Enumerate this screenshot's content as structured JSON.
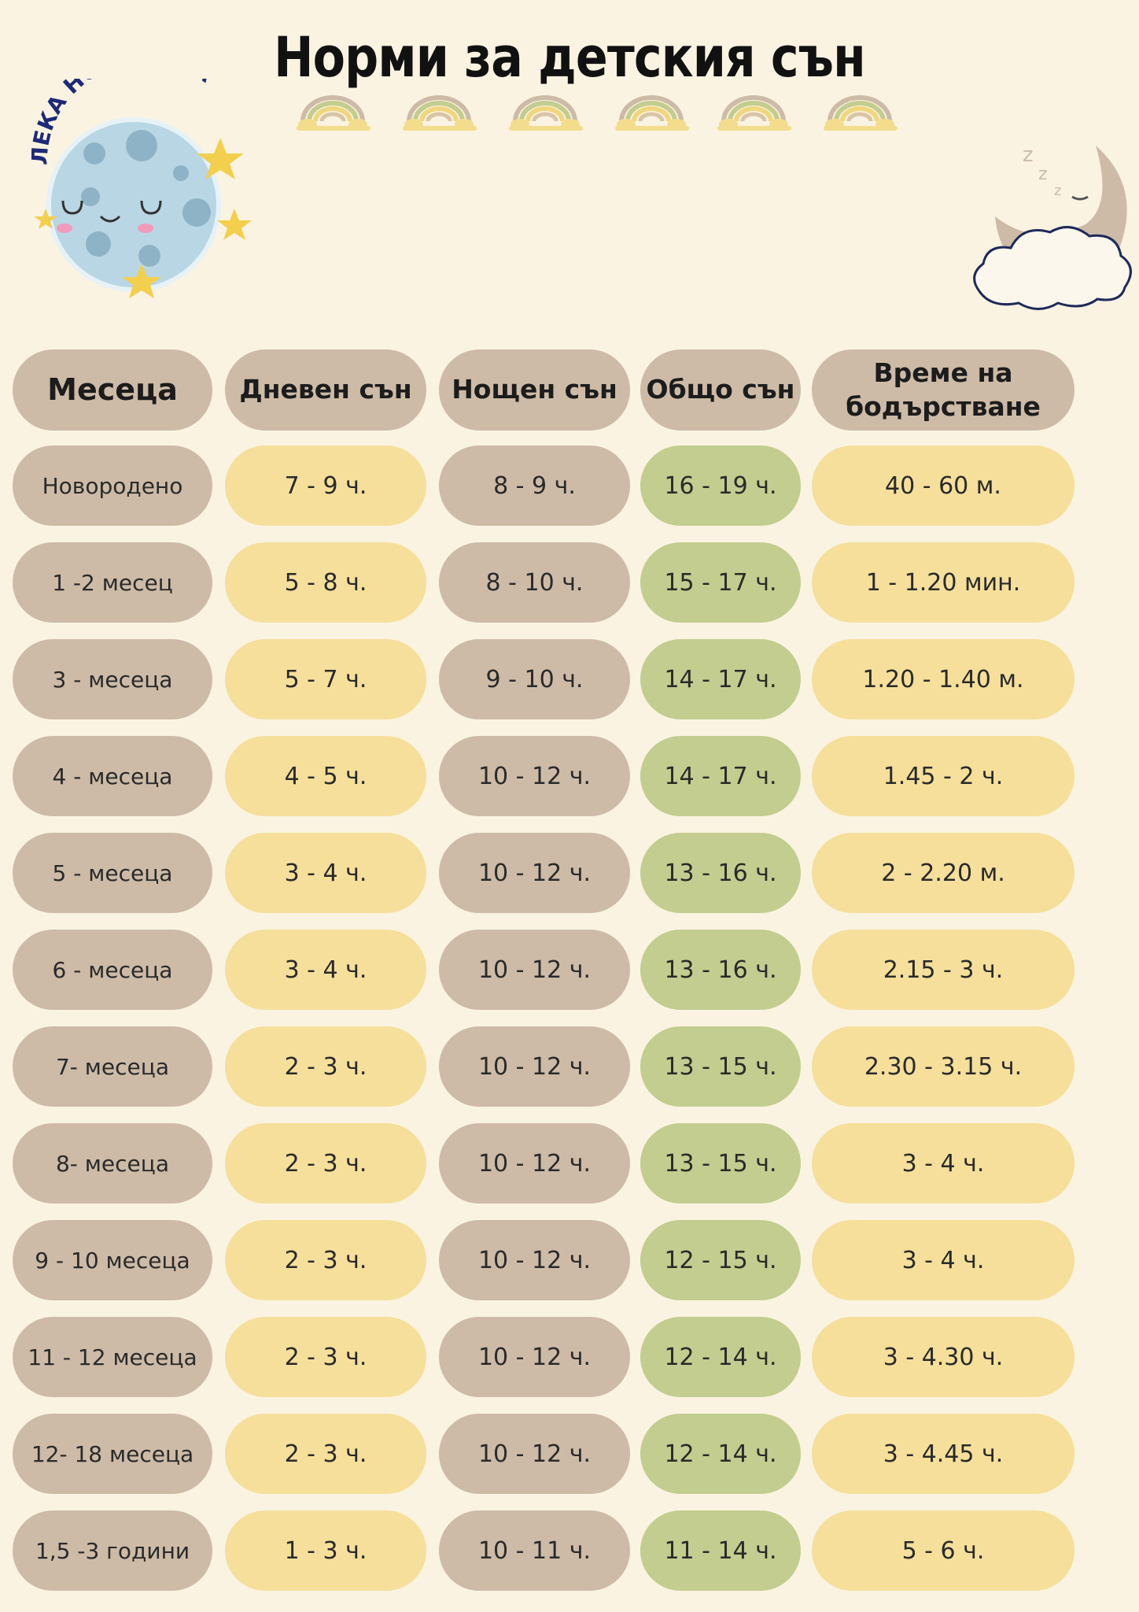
{
  "title": "Норми  за детския сън",
  "logo": {
    "text": "ЛЕКА НОЩ,ДЕЦА"
  },
  "colors": {
    "background": "#faf3e1",
    "taupe": "#cdbba7",
    "yellow": "#f5df9b",
    "green": "#c2cd8f"
  },
  "decor_icons": [
    "rainbow-icon",
    "sleeping-moon-icon",
    "cloud-icon",
    "star-icon"
  ],
  "table": {
    "headers": [
      "Месеца",
      "Дневен сън",
      "Нощен сън",
      "Общо сън",
      "Време на бодърстване"
    ],
    "rows": [
      [
        "Новородено",
        "7 - 9 ч.",
        "8 - 9 ч.",
        "16 - 19 ч.",
        "40 - 60 м."
      ],
      [
        "1 -2 месец",
        "5 - 8 ч.",
        "8 - 10 ч.",
        "15 - 17 ч.",
        "1 - 1.20 мин."
      ],
      [
        "3 - месеца",
        "5 - 7 ч.",
        "9 - 10 ч.",
        "14 - 17 ч.",
        "1.20 - 1.40 м."
      ],
      [
        "4 - месеца",
        "4 - 5 ч.",
        "10 - 12 ч.",
        "14 - 17 ч.",
        "1.45 - 2 ч."
      ],
      [
        "5 - месеца",
        "3 - 4 ч.",
        "10 - 12 ч.",
        "13 - 16 ч.",
        "2 - 2.20 м."
      ],
      [
        "6 - месеца",
        "3 - 4 ч.",
        "10 - 12 ч.",
        "13 - 16 ч.",
        "2.15 - 3 ч."
      ],
      [
        "7- месеца",
        "2 - 3 ч.",
        "10 - 12 ч.",
        "13 - 15 ч.",
        "2.30 - 3.15 ч."
      ],
      [
        "8- месеца",
        "2 - 3 ч.",
        "10 - 12 ч.",
        "13 - 15 ч.",
        "3 - 4 ч."
      ],
      [
        "9 - 10 месеца",
        "2 - 3 ч.",
        "10 - 12 ч.",
        "12 - 15 ч.",
        "3 - 4 ч."
      ],
      [
        "11 - 12 месеца",
        "2 - 3 ч.",
        "10 - 12 ч.",
        "12 - 14 ч.",
        "3 - 4.30 ч."
      ],
      [
        "12- 18 месеца",
        "2 - 3 ч.",
        "10 - 12 ч.",
        "12 - 14 ч.",
        "3 - 4.45 ч."
      ],
      [
        "1,5 -3 години",
        "1 - 3 ч.",
        "10 - 11 ч.",
        "11 - 14 ч.",
        "5 - 6 ч."
      ]
    ]
  }
}
